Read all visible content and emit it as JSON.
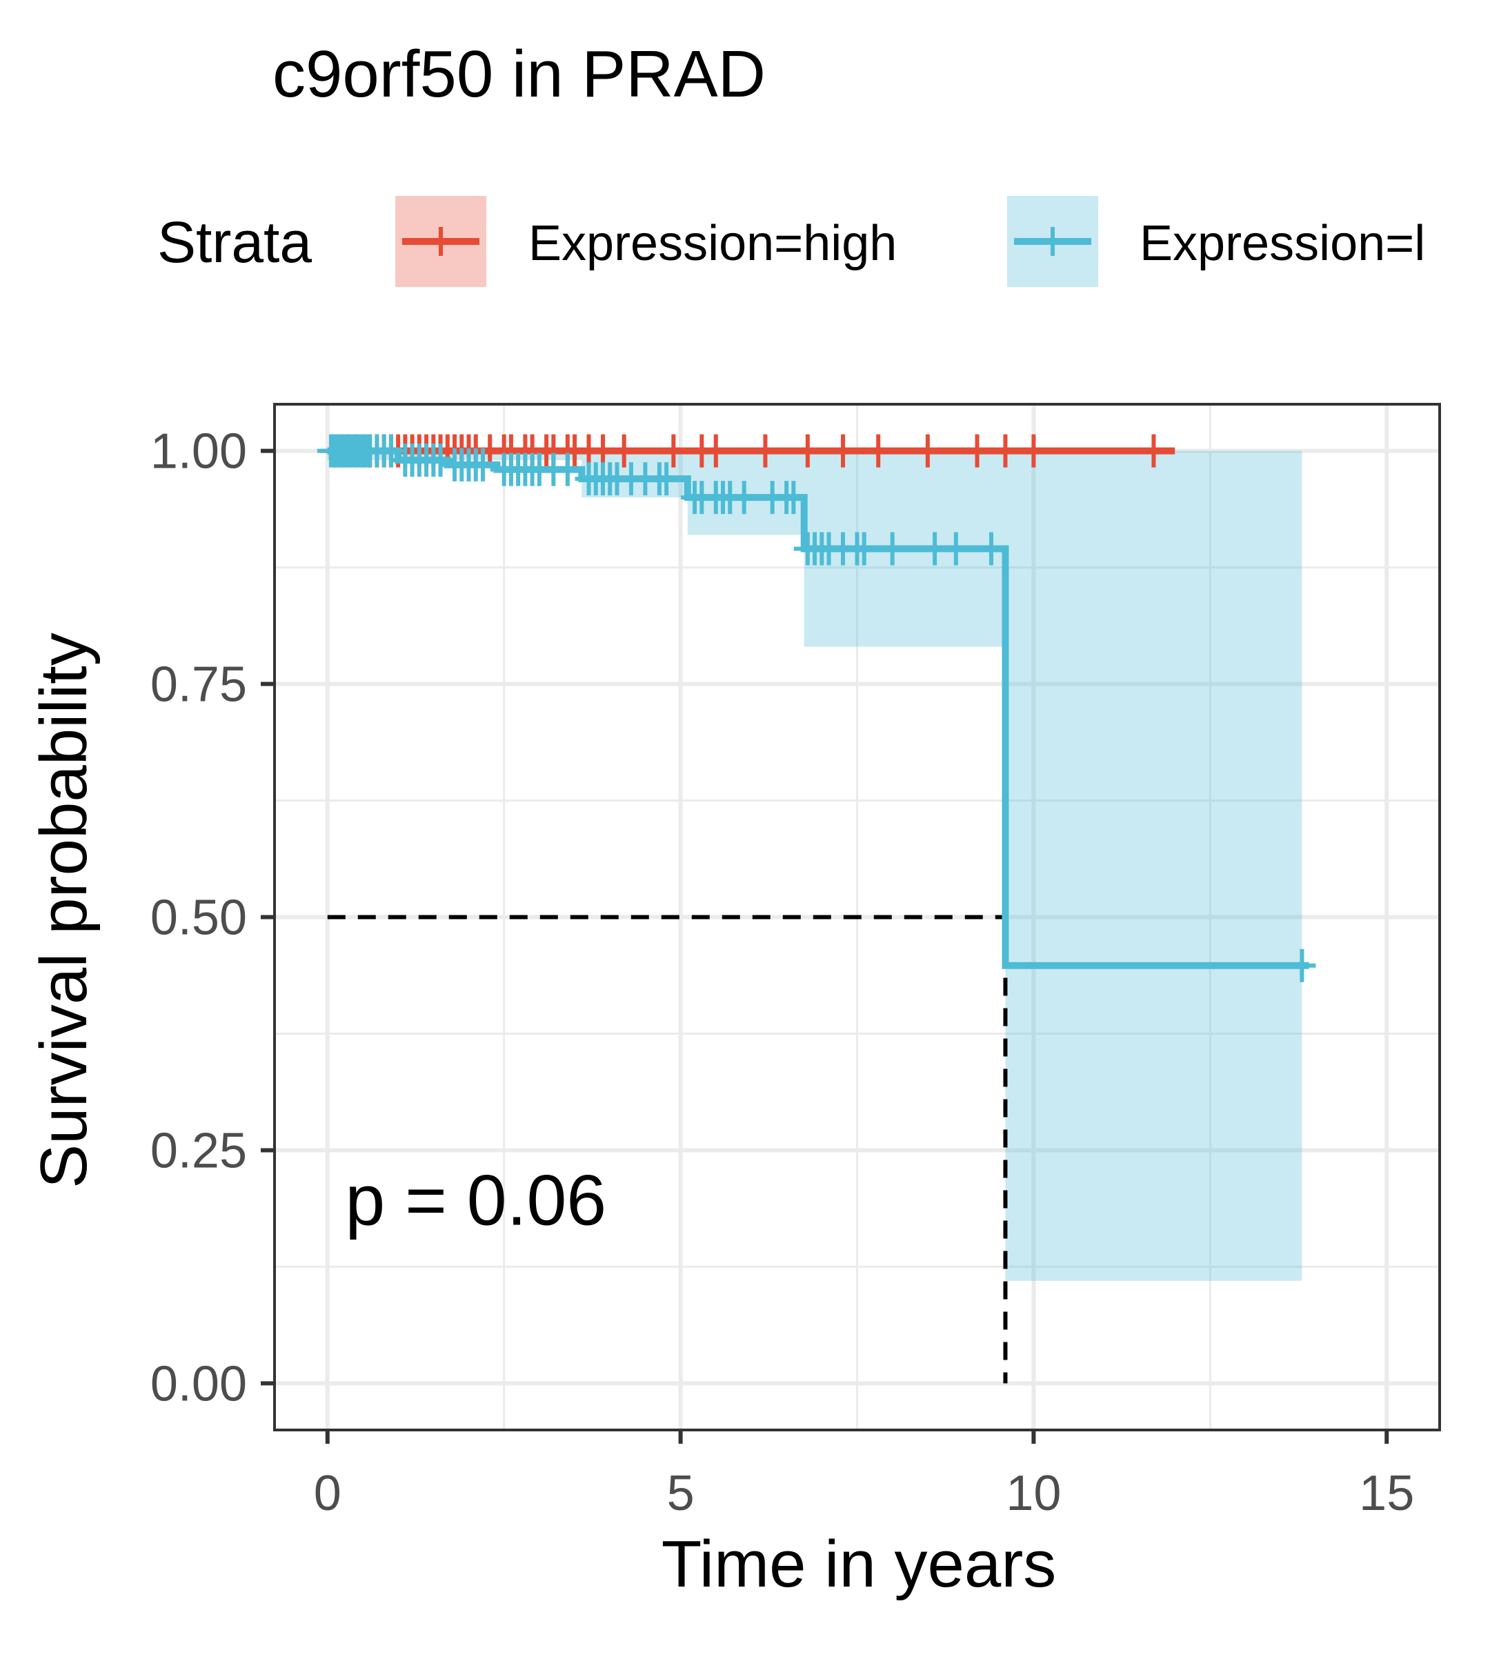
{
  "chart_data": {
    "type": "line",
    "subtype": "kaplan-meier",
    "title": "c9orf50 in PRAD",
    "xlabel": "Time in years",
    "ylabel": "Survival probability",
    "xlim": [
      -0.75,
      15.75
    ],
    "ylim": [
      -0.05,
      1.05
    ],
    "x_ticks": [
      0,
      5,
      10,
      15
    ],
    "x_tick_labels": [
      "0",
      "5",
      "10",
      "15"
    ],
    "y_ticks": [
      0,
      0.25,
      0.5,
      0.75,
      1
    ],
    "y_tick_labels": [
      "0.00",
      "0.25",
      "0.50",
      "0.75",
      "1.00"
    ],
    "grid": true,
    "legend": {
      "title": "Strata",
      "position": "top",
      "entries": [
        "Expression=high",
        "Expression=l"
      ]
    },
    "annotation": "p = 0.06",
    "median_survival": {
      "x": 9.6,
      "y": 0.5
    },
    "series": [
      {
        "name": "Expression=high",
        "color": "#E64B35",
        "steps": [
          [
            0,
            1.0
          ],
          [
            12.0,
            1.0
          ]
        ],
        "censor_times": [
          0.1,
          0.2,
          0.3,
          0.4,
          0.5,
          0.6,
          0.7,
          0.8,
          0.9,
          1.0,
          1.1,
          1.2,
          1.3,
          1.4,
          1.5,
          1.6,
          1.7,
          1.8,
          1.9,
          2.0,
          2.1,
          2.3,
          2.5,
          2.6,
          2.8,
          2.9,
          3.1,
          3.2,
          3.4,
          3.5,
          3.7,
          3.9,
          4.2,
          4.9,
          5.3,
          5.5,
          6.2,
          6.8,
          7.3,
          7.8,
          8.5,
          9.2,
          9.6,
          10.0,
          11.7
        ],
        "ci": [
          [
            0,
            1.0,
            1.0
          ]
        ]
      },
      {
        "name": "Expression=l",
        "color": "#4DBBD5",
        "steps": [
          [
            0,
            1.0
          ],
          [
            1.0,
            0.99
          ],
          [
            1.7,
            0.985
          ],
          [
            2.4,
            0.98
          ],
          [
            3.6,
            0.97
          ],
          [
            5.1,
            0.95
          ],
          [
            6.75,
            0.895
          ],
          [
            9.6,
            0.448
          ],
          [
            13.9,
            0.448
          ]
        ],
        "censor_times": [
          0.05,
          0.1,
          0.15,
          0.2,
          0.25,
          0.3,
          0.35,
          0.4,
          0.45,
          0.5,
          0.55,
          0.6,
          0.7,
          0.8,
          0.9,
          1.1,
          1.2,
          1.3,
          1.4,
          1.5,
          1.6,
          1.8,
          1.9,
          2.0,
          2.1,
          2.2,
          2.5,
          2.6,
          2.7,
          2.8,
          2.9,
          3.0,
          3.2,
          3.4,
          3.7,
          3.8,
          3.9,
          4.0,
          4.1,
          4.3,
          4.5,
          4.7,
          4.8,
          5.2,
          5.3,
          5.5,
          5.6,
          5.7,
          5.9,
          6.3,
          6.5,
          6.6,
          6.8,
          6.9,
          7.0,
          7.1,
          7.3,
          7.5,
          7.6,
          8.0,
          8.6,
          8.9,
          9.4,
          13.8
        ],
        "ci": [
          [
            0,
            1.0,
            0.99
          ],
          [
            3.6,
            1.0,
            0.95
          ],
          [
            5.1,
            1.0,
            0.91
          ],
          [
            6.75,
            1.0,
            0.79
          ],
          [
            9.6,
            1.0,
            0.11
          ],
          [
            13.8,
            1.0,
            0.11
          ]
        ]
      }
    ]
  }
}
